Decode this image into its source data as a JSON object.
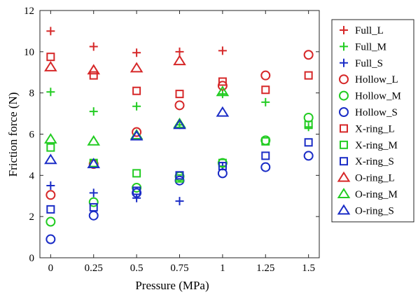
{
  "chart_data": {
    "type": "scatter",
    "title": "",
    "xlabel": "Pressure (MPa)",
    "ylabel": "Friction force (N)",
    "xlim": [
      -0.0625,
      1.5625
    ],
    "ylim": [
      0,
      12
    ],
    "x": [
      0,
      0.25,
      0.5,
      0.75,
      1,
      1.25,
      1.5
    ],
    "x_tick_labels": [
      "0",
      "0.25",
      "0.5",
      "0.75",
      "1",
      "1.25",
      "1.5"
    ],
    "y_ticks": [
      0,
      2,
      4,
      6,
      8,
      10,
      12
    ],
    "grid": false,
    "legend_position": "right-outside",
    "series": [
      {
        "name": "Full_L",
        "marker": "plus",
        "color": "#d62728",
        "points": [
          [
            0,
            11.0
          ],
          [
            0.25,
            10.25
          ],
          [
            0.5,
            9.95
          ],
          [
            0.75,
            10.0
          ],
          [
            1,
            10.05
          ]
        ]
      },
      {
        "name": "Full_M",
        "marker": "plus",
        "color": "#22cc22",
        "points": [
          [
            0,
            8.05
          ],
          [
            0.25,
            7.1
          ],
          [
            0.5,
            7.35
          ],
          [
            0.75,
            6.45
          ],
          [
            1,
            7.95
          ],
          [
            1.25,
            7.55
          ],
          [
            1.5,
            6.35
          ]
        ]
      },
      {
        "name": "Full_S",
        "marker": "plus",
        "color": "#1a2cc6",
        "points": [
          [
            0,
            3.5
          ],
          [
            0.25,
            3.15
          ],
          [
            0.5,
            2.9
          ],
          [
            0.75,
            2.75
          ],
          [
            1,
            4.45
          ]
        ]
      },
      {
        "name": "Hollow_L",
        "marker": "circle",
        "color": "#d62728",
        "points": [
          [
            0,
            3.05
          ],
          [
            0.25,
            4.55
          ],
          [
            0.5,
            6.1
          ],
          [
            0.75,
            7.4
          ],
          [
            1,
            8.35
          ],
          [
            1.25,
            8.85
          ],
          [
            1.5,
            9.85
          ]
        ]
      },
      {
        "name": "Hollow_M",
        "marker": "circle",
        "color": "#22cc22",
        "points": [
          [
            0,
            1.75
          ],
          [
            0.25,
            2.7
          ],
          [
            0.5,
            3.4
          ],
          [
            0.75,
            3.95
          ],
          [
            1,
            4.6
          ],
          [
            1.25,
            5.7
          ],
          [
            1.5,
            6.8
          ]
        ]
      },
      {
        "name": "Hollow_S",
        "marker": "circle",
        "color": "#1a2cc6",
        "points": [
          [
            0,
            0.9
          ],
          [
            0.25,
            2.05
          ],
          [
            0.5,
            3.15
          ],
          [
            0.75,
            3.75
          ],
          [
            1,
            4.1
          ],
          [
            1.25,
            4.4
          ],
          [
            1.5,
            4.95
          ]
        ]
      },
      {
        "name": "X-ring_L",
        "marker": "square",
        "color": "#d62728",
        "points": [
          [
            0,
            9.75
          ],
          [
            0.25,
            8.85
          ],
          [
            0.5,
            8.1
          ],
          [
            0.75,
            7.95
          ],
          [
            1,
            8.55
          ],
          [
            1.25,
            8.15
          ],
          [
            1.5,
            8.85
          ]
        ]
      },
      {
        "name": "X-ring_M",
        "marker": "square",
        "color": "#22cc22",
        "points": [
          [
            0,
            5.35
          ],
          [
            0.25,
            4.6
          ],
          [
            0.5,
            4.1
          ],
          [
            0.75,
            3.85
          ],
          [
            1,
            4.6
          ],
          [
            1.25,
            5.65
          ],
          [
            1.5,
            6.45
          ]
        ]
      },
      {
        "name": "X-ring_S",
        "marker": "square",
        "color": "#1a2cc6",
        "points": [
          [
            0,
            2.35
          ],
          [
            0.25,
            2.45
          ],
          [
            0.5,
            3.25
          ],
          [
            0.75,
            4.0
          ],
          [
            1,
            4.45
          ],
          [
            1.25,
            4.95
          ],
          [
            1.5,
            5.6
          ]
        ]
      },
      {
        "name": "O-ring_L",
        "marker": "triangle",
        "color": "#d62728",
        "points": [
          [
            0,
            9.25
          ],
          [
            0.25,
            9.1
          ],
          [
            0.5,
            9.2
          ],
          [
            0.75,
            9.55
          ]
        ]
      },
      {
        "name": "O-ring_M",
        "marker": "triangle",
        "color": "#22cc22",
        "points": [
          [
            0,
            5.75
          ],
          [
            0.25,
            5.65
          ],
          [
            0.5,
            5.95
          ],
          [
            0.75,
            6.5
          ],
          [
            1,
            8.05
          ]
        ]
      },
      {
        "name": "O-ring_S",
        "marker": "triangle",
        "color": "#1a2cc6",
        "points": [
          [
            0,
            4.75
          ],
          [
            0.25,
            4.55
          ],
          [
            0.5,
            5.9
          ],
          [
            0.75,
            6.45
          ],
          [
            1,
            7.05
          ]
        ]
      }
    ]
  }
}
